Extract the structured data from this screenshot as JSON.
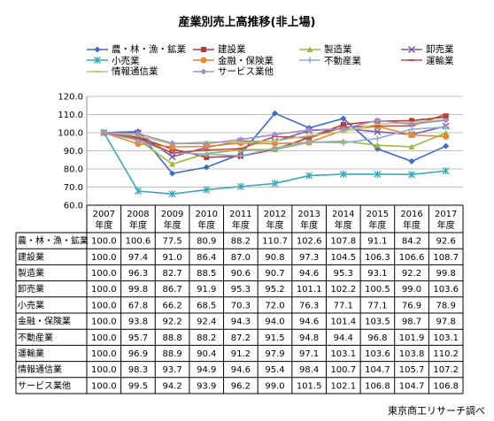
{
  "title": "産業別売上高推移(非上場)",
  "source": "東京商工リサーチ調べ",
  "chart_data": {
    "type": "line",
    "title": "産業別売上高推移(非上場)",
    "ylim": [
      60,
      120
    ],
    "yticks": [
      "60.0",
      "70.0",
      "80.0",
      "90.0",
      "100.0",
      "110.0",
      "120.0"
    ],
    "x": [
      "2007",
      "2008",
      "2009",
      "2010",
      "2011",
      "2012",
      "2013",
      "2014",
      "2015",
      "2016",
      "2017"
    ],
    "x_sub": "年度",
    "grid": true,
    "legend_position": "top",
    "series": [
      {
        "name": "農・林・漁・鉱業",
        "color": "#3f6bc4",
        "marker": "diamond",
        "values": [
          100.0,
          100.6,
          77.5,
          80.9,
          88.2,
          110.7,
          102.6,
          107.8,
          91.1,
          84.2,
          92.6
        ]
      },
      {
        "name": "建設業",
        "color": "#b33a3a",
        "marker": "square",
        "values": [
          100.0,
          97.4,
          91.0,
          86.4,
          87.0,
          90.8,
          97.3,
          104.5,
          106.3,
          106.6,
          108.7
        ]
      },
      {
        "name": "製造業",
        "color": "#9ab83f",
        "marker": "triangle",
        "values": [
          100.0,
          96.3,
          82.7,
          88.5,
          90.6,
          90.7,
          94.6,
          95.3,
          93.1,
          92.2,
          99.8
        ]
      },
      {
        "name": "卸売業",
        "color": "#7a5aa6",
        "marker": "x",
        "values": [
          100.0,
          99.8,
          86.7,
          91.9,
          95.3,
          95.2,
          101.1,
          102.2,
          100.5,
          99.0,
          103.6
        ]
      },
      {
        "name": "小売業",
        "color": "#3aa7bd",
        "marker": "star",
        "values": [
          100.0,
          67.8,
          66.2,
          68.5,
          70.3,
          72.0,
          76.3,
          77.1,
          77.1,
          76.9,
          78.9
        ]
      },
      {
        "name": "金融・保険業",
        "color": "#e8892c",
        "marker": "circle",
        "values": [
          100.0,
          93.8,
          92.2,
          92.4,
          94.3,
          94.0,
          94.6,
          101.4,
          103.5,
          98.7,
          97.8
        ]
      },
      {
        "name": "不動産業",
        "color": "#8faed6",
        "marker": "plus",
        "values": [
          100.0,
          95.7,
          88.8,
          88.2,
          87.2,
          91.5,
          94.8,
          94.4,
          96.8,
          101.9,
          103.1
        ]
      },
      {
        "name": "運輸業",
        "color": "#c0504d",
        "marker": "dash",
        "values": [
          100.0,
          96.9,
          88.9,
          90.4,
          91.2,
          97.9,
          97.1,
          103.1,
          103.6,
          103.8,
          110.2
        ]
      },
      {
        "name": "情報通信業",
        "color": "#b6cc7a",
        "marker": "dash",
        "values": [
          100.0,
          98.3,
          93.7,
          94.9,
          94.6,
          95.4,
          98.4,
          100.7,
          104.7,
          105.7,
          107.2
        ]
      },
      {
        "name": "サービス業他",
        "color": "#a38fc6",
        "marker": "diamond",
        "values": [
          100.0,
          99.5,
          94.2,
          93.9,
          96.2,
          99.0,
          101.5,
          102.1,
          106.8,
          104.7,
          106.8
        ]
      }
    ]
  }
}
